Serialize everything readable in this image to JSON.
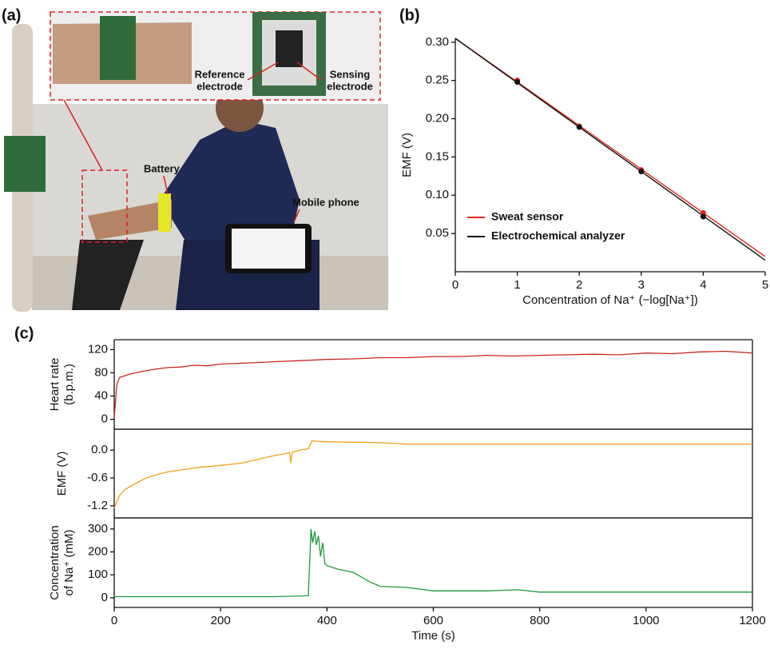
{
  "panel_a": {
    "label": "(a)",
    "reference": [
      "Reference",
      "electrode"
    ],
    "sensing": [
      "Sensing",
      "electrode"
    ],
    "battery": "Battery",
    "phone": "Mobile phone"
  },
  "chart_data": [
    {
      "type": "scatter",
      "panel_label": "(b)",
      "xlabel": "Concentration of Na⁺ (−log[Na⁺])",
      "ylabel": "EMF (V)",
      "xlim": [
        0,
        5
      ],
      "xticks": [
        0,
        1,
        2,
        3,
        4,
        5
      ],
      "ylim": [
        0,
        0.305
      ],
      "yticks": [
        0.05,
        {
          "value": 0.1,
          "label": "0.10"
        },
        0.15,
        {
          "value": 0.2,
          "label": "0.20"
        },
        0.25,
        {
          "value": 0.3,
          "label": "0.30"
        }
      ],
      "legend": "lower left",
      "x": [
        1,
        2,
        3,
        4
      ],
      "series": [
        {
          "name": "Sweat sensor",
          "color": "#e0281e",
          "values": [
            0.25,
            0.19,
            0.133,
            0.077
          ],
          "fit_x": [
            0,
            5
          ],
          "fit_values": [
            0.305,
            0.02
          ]
        },
        {
          "name": "Electrochemical analyzer",
          "color": "#111111",
          "values": [
            0.248,
            0.189,
            0.131,
            0.072
          ],
          "fit_x": [
            0,
            5
          ],
          "fit_values": [
            0.305,
            0.015
          ]
        }
      ]
    },
    {
      "type": "line",
      "panel_label": "(c)",
      "ylabel": [
        "Heart rate",
        "(b.p.m.)"
      ],
      "xlim": [
        0,
        1200
      ],
      "ylim": [
        -17,
        137
      ],
      "yticks": [
        0,
        40,
        80,
        120
      ],
      "color": "#c8281e",
      "x": [
        0,
        5,
        10,
        20,
        30,
        50,
        75,
        100,
        125,
        150,
        175,
        200,
        250,
        300,
        350,
        400,
        450,
        500,
        550,
        600,
        650,
        700,
        750,
        800,
        850,
        900,
        950,
        1000,
        1050,
        1100,
        1150,
        1200
      ],
      "values": [
        3,
        60,
        72,
        75,
        78,
        82,
        86,
        89,
        90,
        93,
        92,
        95,
        97,
        99,
        101,
        103,
        104,
        106,
        106,
        108,
        108,
        110,
        109,
        110,
        111,
        112,
        111,
        114,
        113,
        116,
        117,
        114
      ]
    },
    {
      "type": "line",
      "ylabel": [
        "EMF (V)"
      ],
      "xlim": [
        0,
        1200
      ],
      "ylim": [
        -1.46,
        0.45
      ],
      "yticks": [
        {
          "value": 0,
          "label": "0.0"
        },
        -0.6,
        -1.2
      ],
      "color": "#f0a01e",
      "x": [
        0,
        5,
        10,
        20,
        40,
        60,
        80,
        100,
        130,
        160,
        200,
        240,
        270,
        300,
        320,
        330,
        332,
        335,
        350,
        365,
        372,
        380,
        400,
        450,
        500,
        550,
        600,
        800,
        1000,
        1200
      ],
      "values": [
        -1.25,
        -1.1,
        -0.98,
        -0.85,
        -0.72,
        -0.6,
        -0.53,
        -0.47,
        -0.42,
        -0.37,
        -0.33,
        -0.28,
        -0.2,
        -0.12,
        -0.08,
        -0.05,
        -0.28,
        -0.04,
        0.0,
        0.03,
        0.2,
        0.19,
        0.18,
        0.17,
        0.16,
        0.13,
        0.13,
        0.13,
        0.13,
        0.13
      ]
    },
    {
      "type": "line",
      "ylabel": [
        "Concentration",
        "of Na⁺ (mM)"
      ],
      "xlabel": "Time (s)",
      "xlim": [
        0,
        1200
      ],
      "xticks": [
        0,
        200,
        400,
        600,
        800,
        1000,
        1200
      ],
      "ylim": [
        -42,
        348
      ],
      "yticks": [
        0,
        100,
        200,
        300
      ],
      "color": "#1e9a3c",
      "x": [
        0,
        100,
        200,
        300,
        355,
        365,
        370,
        373,
        377,
        380,
        384,
        388,
        392,
        396,
        400,
        420,
        450,
        480,
        500,
        550,
        600,
        700,
        760,
        800,
        1000,
        1200
      ],
      "values": [
        5,
        5,
        5,
        5,
        8,
        10,
        300,
        240,
        290,
        230,
        270,
        180,
        240,
        150,
        140,
        125,
        110,
        70,
        50,
        45,
        30,
        30,
        35,
        25,
        25,
        25
      ]
    }
  ]
}
